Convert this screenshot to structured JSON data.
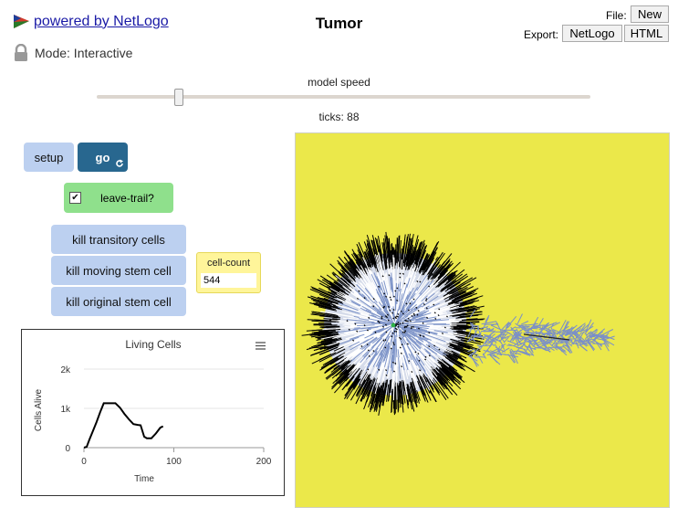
{
  "header": {
    "powered_by": "powered by NetLogo",
    "title": "Tumor",
    "mode": "Mode: Interactive",
    "file_label": "File:",
    "new_button": "New",
    "export_label": "Export:",
    "export_netlogo": "NetLogo",
    "export_html": "HTML"
  },
  "speed": {
    "label": "model speed",
    "ticks_label": "ticks: 88"
  },
  "buttons": {
    "setup": "setup",
    "go": "go",
    "kill_transitory": "kill transitory cells",
    "kill_moving": "kill moving stem cell",
    "kill_original": "kill original stem cell"
  },
  "switch": {
    "label": "leave-trail?",
    "checked": true
  },
  "monitor": {
    "label": "cell-count",
    "value": "544"
  },
  "colors": {
    "view_bg": "#ebe84a",
    "button": "#bcd0f0",
    "go": "#28678f",
    "switch": "#8fe08c",
    "monitor": "#fff59a"
  },
  "chart_data": {
    "type": "line",
    "title": "Living Cells",
    "xlabel": "Time",
    "ylabel": "Cells Alive",
    "xlim": [
      0,
      200
    ],
    "ylim": [
      0,
      2000
    ],
    "x_ticks": [
      "0",
      "100",
      "200"
    ],
    "y_ticks": [
      "0",
      "1k",
      "2k"
    ],
    "series": [
      {
        "color": "#000000",
        "x": [
          0,
          3,
          6,
          10,
          14,
          18,
          22,
          26,
          30,
          35,
          40,
          45,
          50,
          55,
          60,
          63,
          67,
          70,
          75,
          80,
          85,
          88
        ],
        "y": [
          0,
          20,
          200,
          420,
          650,
          900,
          1130,
          1130,
          1130,
          1130,
          1020,
          860,
          720,
          600,
          580,
          570,
          280,
          240,
          240,
          360,
          510,
          544
        ]
      }
    ]
  }
}
